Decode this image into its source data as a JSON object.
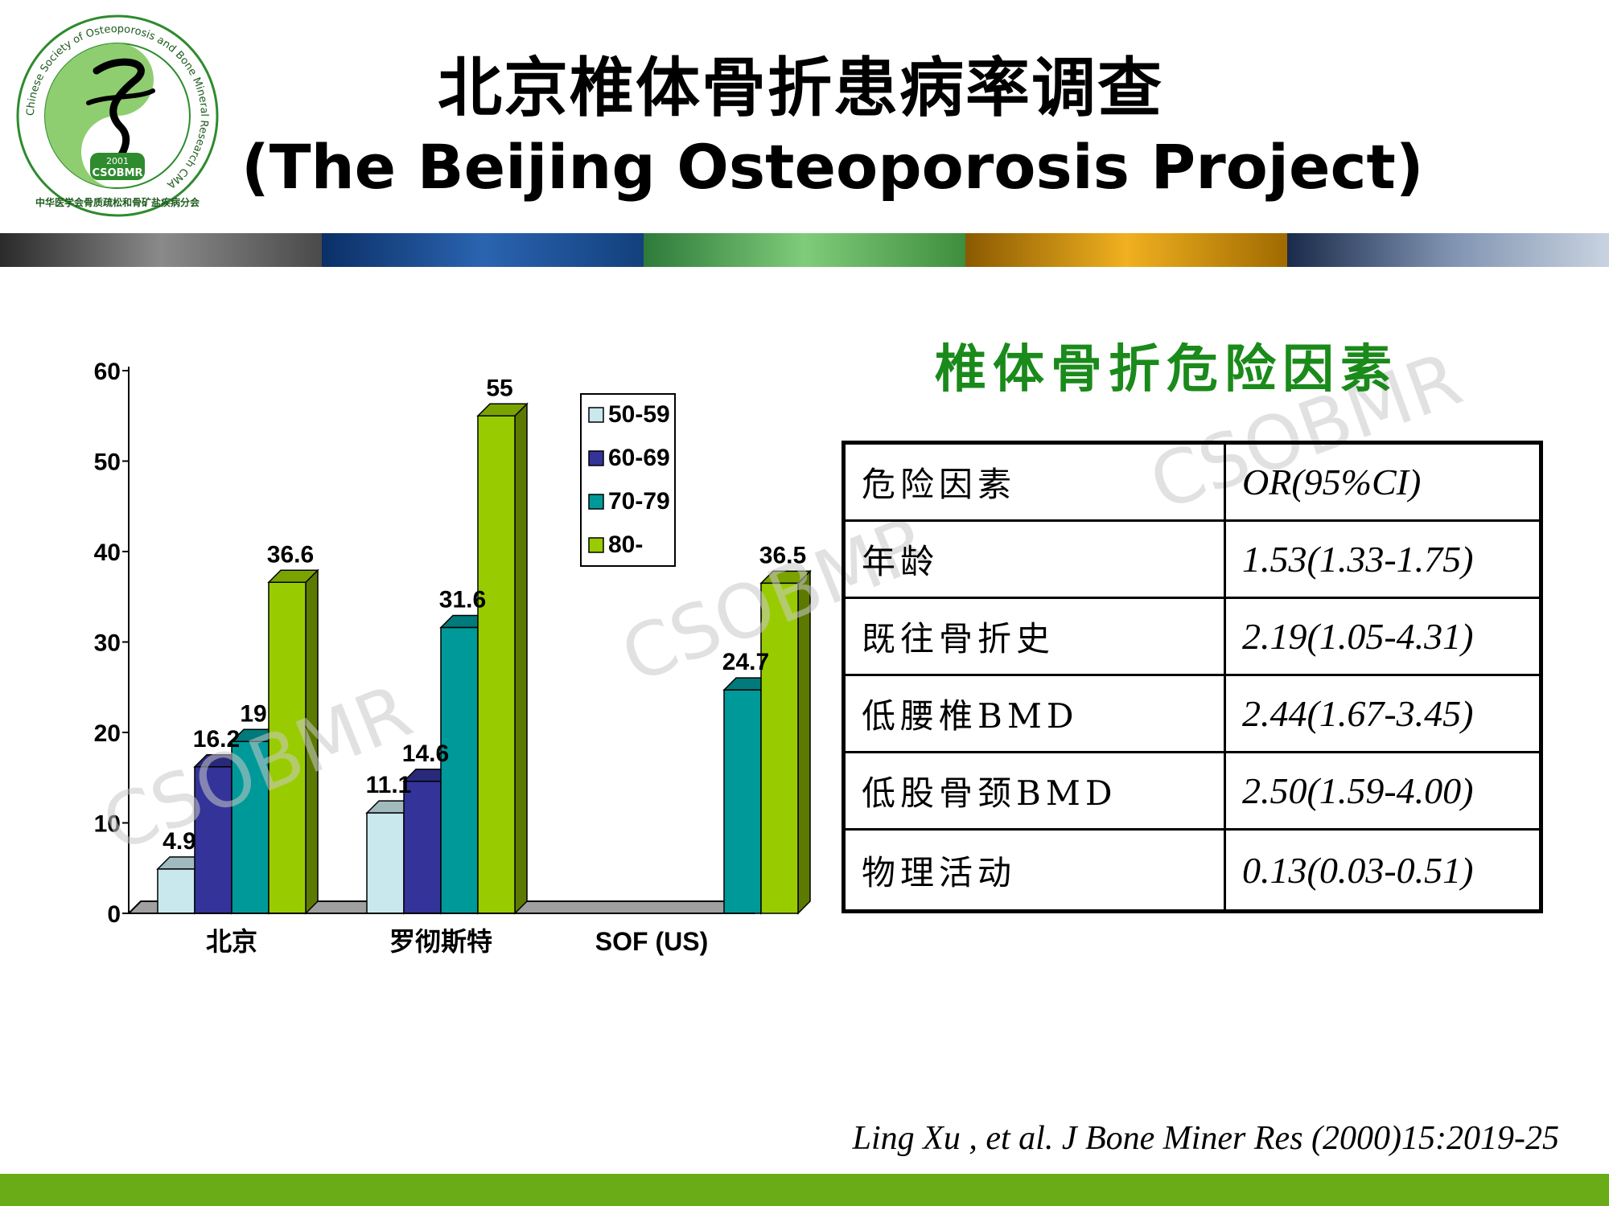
{
  "header": {
    "title_zh": "北京椎体骨折患病率调查",
    "title_en": "(The Beijing Osteoporosis Project)",
    "logo": {
      "ring_text": "Chinese Society of Osteoporosis and Bone Mineral Research CMA",
      "bottom_text": "中华医学会骨质疏松和骨矿盐疾病分会",
      "badge_year": "2001",
      "badge_text": "CSOBMR"
    }
  },
  "watermark_text": "CSOBMR",
  "chart_data": {
    "type": "bar",
    "categories": [
      "北京",
      "罗彻斯特",
      "SOF (US)"
    ],
    "series": [
      {
        "name": "50-59",
        "values": [
          4.9,
          11.1,
          null
        ],
        "color": "#c8e8ee"
      },
      {
        "name": "60-69",
        "values": [
          16.2,
          14.6,
          null
        ],
        "color": "#333399"
      },
      {
        "name": "70-79",
        "values": [
          19,
          31.6,
          24.7
        ],
        "color": "#009999"
      },
      {
        "name": "80-",
        "values": [
          36.6,
          55,
          36.5
        ],
        "color": "#99cc00"
      }
    ],
    "data_labels": [
      [
        "4.9",
        "11.1",
        ""
      ],
      [
        "16.2",
        "14.6",
        ""
      ],
      [
        "19",
        "31.6",
        "24.7"
      ],
      [
        "36.6",
        "55",
        "36.5"
      ]
    ],
    "yticks": [
      "0",
      "10",
      "20",
      "30",
      "40",
      "50",
      "60"
    ],
    "ylim": [
      0,
      60
    ],
    "title": "",
    "xlabel": "",
    "ylabel": "",
    "legend_position": "top-right",
    "three_d": true
  },
  "risk_factors": {
    "title": "椎体骨折危险因素",
    "header": [
      "危险因素",
      "OR(95%CI)"
    ],
    "rows": [
      [
        "年龄",
        "1.53(1.33-1.75)"
      ],
      [
        "既往骨折史",
        "2.19(1.05-4.31)"
      ],
      [
        "低腰椎BMD",
        "2.44(1.67-3.45)"
      ],
      [
        "低股骨颈BMD",
        "2.50(1.59-4.00)"
      ],
      [
        "物理活动",
        "0.13(0.03-0.51)"
      ]
    ]
  },
  "citation": "Ling Xu , et al. J Bone Miner Res (2000)15:2019-25",
  "colors": {
    "accent_green": "#6aab18",
    "title_green": "#1a8a1a"
  }
}
